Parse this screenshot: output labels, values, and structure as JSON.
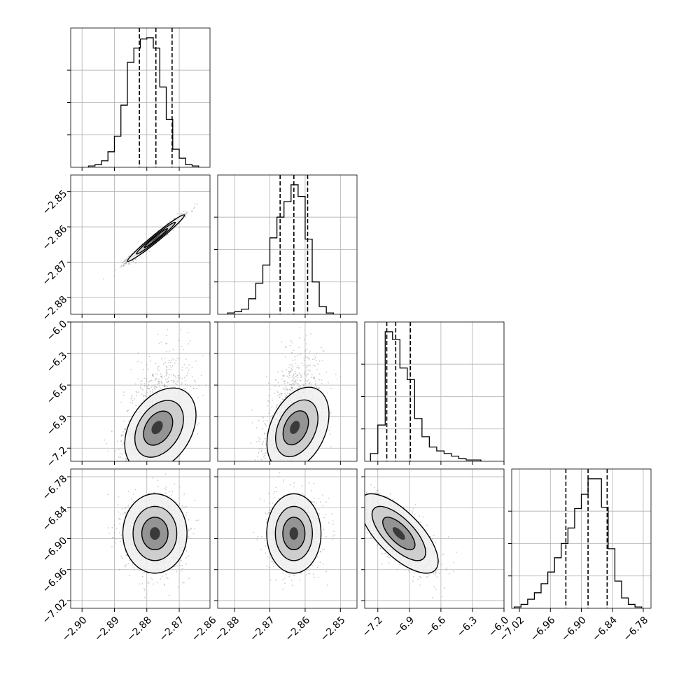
{
  "chart_data": {
    "type": "corner",
    "parameters": 4,
    "axis_ticks": [
      {
        "ticks": [
          -2.9,
          -2.89,
          -2.88,
          -2.87,
          -2.86
        ],
        "labels": [
          "−2.90",
          "−2.89",
          "−2.88",
          "−2.87",
          "−2.86"
        ],
        "range": [
          -2.9035,
          -2.8605
        ]
      },
      {
        "ticks": [
          -2.88,
          -2.87,
          -2.86,
          -2.85
        ],
        "labels": [
          "−2.88",
          "−2.87",
          "−2.86",
          "−2.85"
        ],
        "range": [
          -2.8848,
          -2.8453
        ]
      },
      {
        "ticks": [
          -7.2,
          -6.9,
          -6.6,
          -6.3,
          -6.0
        ],
        "labels": [
          "−7.2",
          "−6.9",
          "−6.6",
          "−6.3",
          "−6.0"
        ],
        "range": [
          -7.325,
          -6.0
        ]
      },
      {
        "ticks": [
          -7.02,
          -6.96,
          -6.9,
          -6.84,
          -6.78
        ],
        "labels": [
          "−7.02",
          "−6.96",
          "−6.90",
          "−6.84",
          "−6.78"
        ],
        "range": [
          -7.035,
          -6.765
        ]
      }
    ],
    "quantiles": [
      [
        -2.8823,
        -2.8772,
        -2.8722
      ],
      [
        -2.8671,
        -2.8632,
        -2.8593
      ],
      [
        -7.115,
        -7.03,
        -6.89
      ],
      [
        -6.93,
        -6.887,
        -6.85
      ]
    ],
    "histograms": [
      {
        "edges": [
          -2.898,
          -2.896,
          -2.894,
          -2.892,
          -2.89,
          -2.888,
          -2.886,
          -2.884,
          -2.882,
          -2.88,
          -2.878,
          -2.876,
          -2.874,
          -2.872,
          -2.87,
          -2.868,
          -2.866,
          -2.864
        ],
        "counts": [
          0.01,
          0.02,
          0.05,
          0.12,
          0.24,
          0.48,
          0.81,
          0.92,
          0.99,
          1.0,
          0.92,
          0.62,
          0.37,
          0.14,
          0.07,
          0.02,
          0.01
        ]
      },
      {
        "edges": [
          -2.882,
          -2.88,
          -2.878,
          -2.876,
          -2.874,
          -2.872,
          -2.87,
          -2.868,
          -2.866,
          -2.864,
          -2.862,
          -2.86,
          -2.858,
          -2.856,
          -2.854,
          -2.852
        ],
        "counts": [
          0.01,
          0.02,
          0.04,
          0.12,
          0.24,
          0.38,
          0.59,
          0.75,
          0.87,
          1.0,
          0.91,
          0.58,
          0.25,
          0.06,
          0.01
        ]
      },
      {
        "edges": [
          -7.27,
          -7.2,
          -7.13,
          -7.06,
          -6.99,
          -6.92,
          -6.85,
          -6.78,
          -6.71,
          -6.64,
          -6.57,
          -6.5,
          -6.43,
          -6.36,
          -6.29,
          -6.22
        ],
        "counts": [
          0.06,
          0.28,
          1.0,
          0.94,
          0.72,
          0.63,
          0.33,
          0.19,
          0.11,
          0.08,
          0.06,
          0.04,
          0.02,
          0.01,
          0.01
        ]
      },
      {
        "edges": [
          -7.03,
          -7.017,
          -7.004,
          -6.991,
          -6.978,
          -6.965,
          -6.952,
          -6.939,
          -6.926,
          -6.913,
          -6.9,
          -6.887,
          -6.874,
          -6.861,
          -6.848,
          -6.835,
          -6.822,
          -6.809,
          -6.796,
          -6.783
        ],
        "counts": [
          0.01,
          0.03,
          0.07,
          0.12,
          0.19,
          0.28,
          0.39,
          0.5,
          0.62,
          0.77,
          0.88,
          1.0,
          1.0,
          0.78,
          0.46,
          0.21,
          0.08,
          0.03,
          0.01
        ]
      }
    ],
    "scatter_panels": [
      {
        "row": 1,
        "col": 0,
        "mean": [
          -2.8772,
          -2.8632
        ],
        "sd": [
          0.004,
          0.003
        ],
        "corr": 0.98,
        "skew_y": 0
      },
      {
        "row": 2,
        "col": 0,
        "mean": [
          -2.877,
          -7.0
        ],
        "sd": [
          0.005,
          0.18
        ],
        "corr": 0.35,
        "skew_y": 1
      },
      {
        "row": 2,
        "col": 1,
        "mean": [
          -2.8631,
          -7.0
        ],
        "sd": [
          0.004,
          0.18
        ],
        "corr": 0.35,
        "skew_y": 1
      },
      {
        "row": 3,
        "col": 0,
        "mean": [
          -2.8775,
          -6.89
        ],
        "sd": [
          0.0045,
          0.035
        ],
        "corr": 0.0,
        "skew_y": 0
      },
      {
        "row": 3,
        "col": 1,
        "mean": [
          -2.8632,
          -6.89
        ],
        "sd": [
          0.0035,
          0.035
        ],
        "corr": 0.0,
        "skew_y": 0
      },
      {
        "row": 3,
        "col": 2,
        "mean": [
          -7.0,
          -6.89
        ],
        "sd": [
          0.17,
          0.035
        ],
        "corr": -0.7,
        "skew_y": 0
      }
    ],
    "grid": true,
    "colors": {
      "line": "#000000",
      "scatter": "#8c8c8c",
      "grid": "#b0b0b0"
    }
  }
}
